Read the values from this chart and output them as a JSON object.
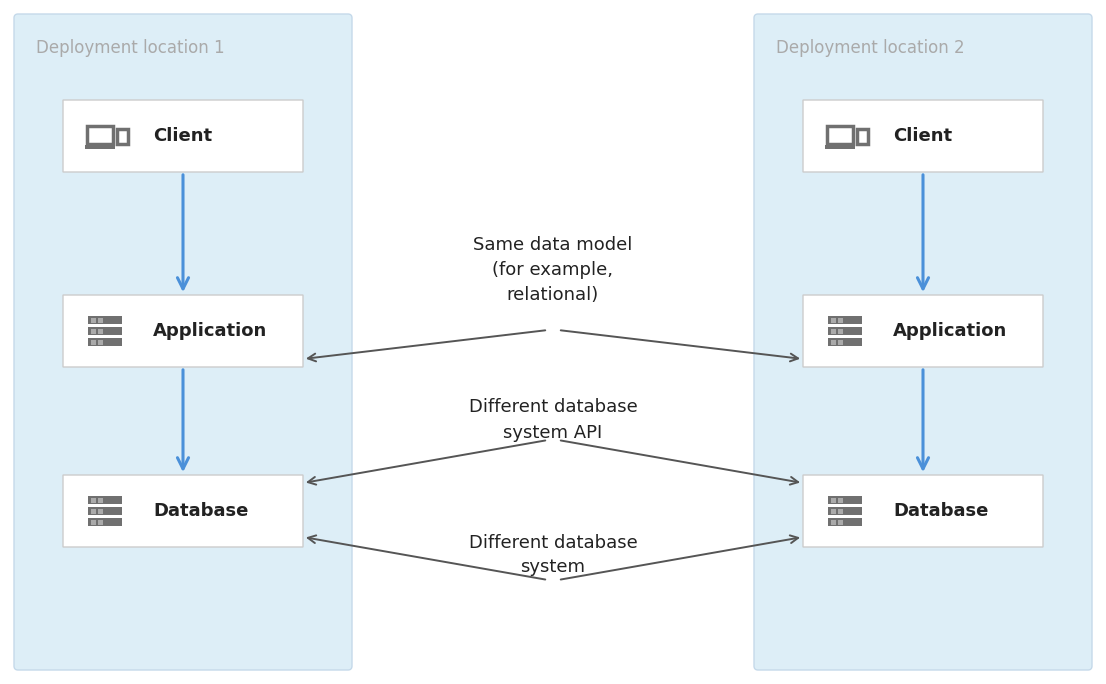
{
  "fig_width": 11.06,
  "fig_height": 6.84,
  "bg_color": "#ffffff",
  "panel_color": "#ddeef7",
  "panel_border_color": "#c5d9ea",
  "box_color": "#ffffff",
  "box_border_color": "#cccccc",
  "icon_color": "#707070",
  "blue_arrow_color": "#4a90d9",
  "gray_arrow_color": "#555555",
  "label_color": "#222222",
  "panel_label_color": "#aaaaaa",
  "panel1_label": "Deployment location 1",
  "panel2_label": "Deployment location 2",
  "annotation1": "Same data model\n(for example,\nrelational)",
  "annotation2": "Different database\nsystem API",
  "annotation3": "Different database\nsystem",
  "font_size_box": 13,
  "font_size_panel": 12,
  "font_size_annotation": 13
}
